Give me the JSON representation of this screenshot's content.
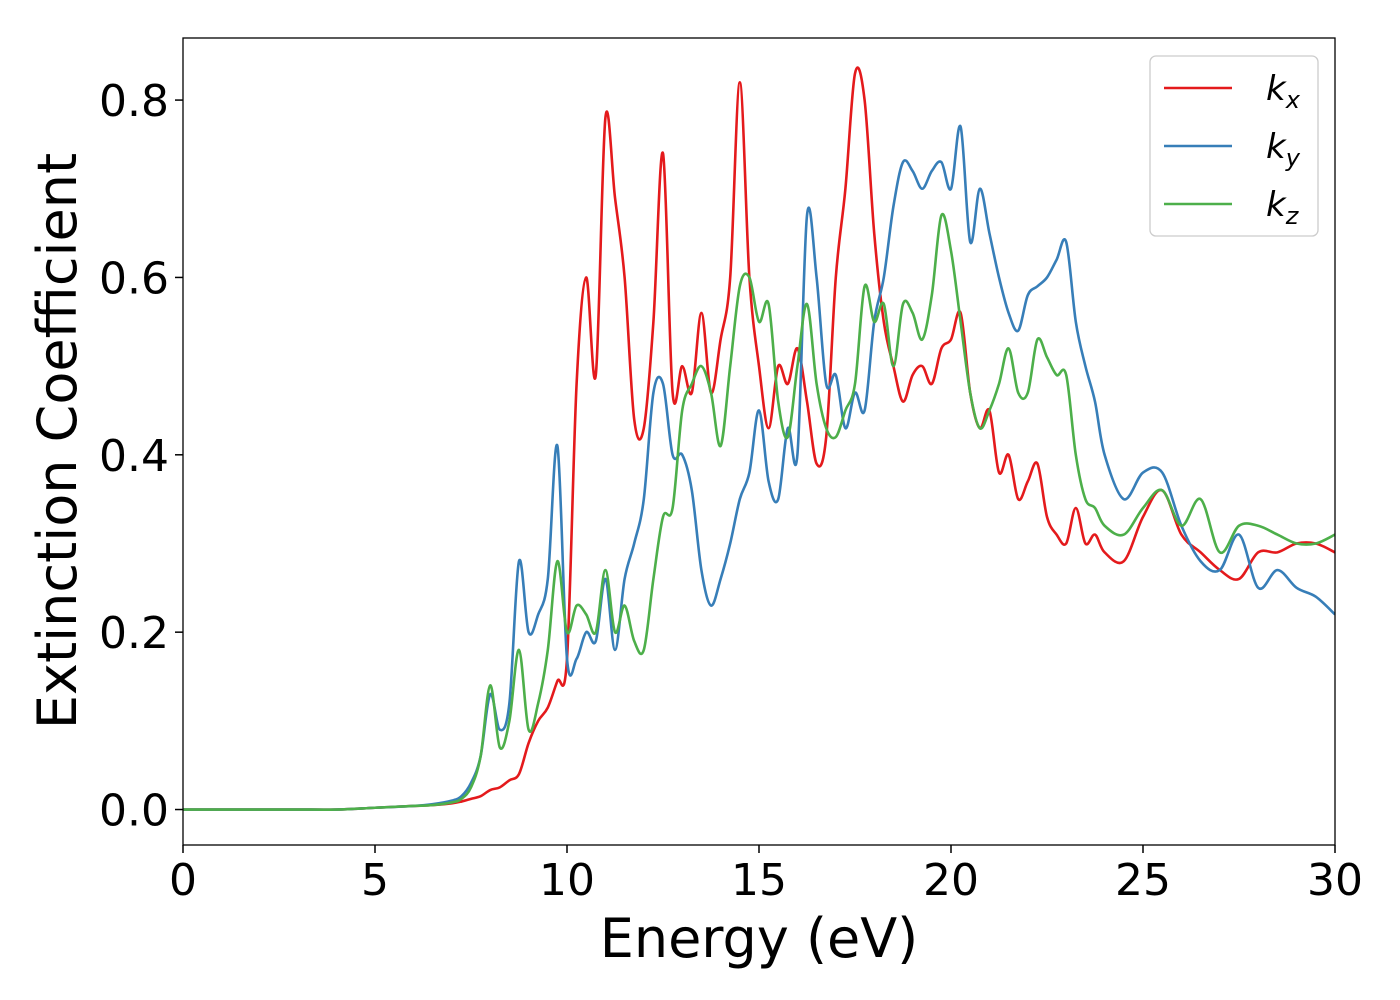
{
  "chart_data": {
    "type": "line",
    "xlabel": "Energy (eV)",
    "ylabel": "Extinction Coefficient",
    "xlim": [
      0,
      30
    ],
    "ylim": [
      -0.04,
      0.87
    ],
    "xticks": [
      0,
      5,
      10,
      15,
      20,
      25,
      30
    ],
    "yticks": [
      {
        "value": 0,
        "label": "0.0"
      },
      0.2,
      0.4,
      0.6,
      0.8
    ],
    "legend": "upper right",
    "grid": false,
    "x": [
      0,
      1,
      2,
      3,
      4,
      5,
      6,
      6.5,
      7,
      7.25,
      7.5,
      7.75,
      8,
      8.25,
      8.5,
      8.75,
      9,
      9.25,
      9.5,
      9.75,
      10,
      10.25,
      10.5,
      10.75,
      11,
      11.25,
      11.5,
      11.75,
      12,
      12.25,
      12.5,
      12.75,
      13,
      13.25,
      13.5,
      13.75,
      14,
      14.25,
      14.5,
      14.75,
      15,
      15.25,
      15.5,
      15.75,
      16,
      16.25,
      16.5,
      16.75,
      17,
      17.25,
      17.5,
      17.75,
      18,
      18.25,
      18.5,
      18.75,
      19,
      19.25,
      19.5,
      19.75,
      20,
      20.25,
      20.5,
      20.75,
      21,
      21.25,
      21.5,
      21.75,
      22,
      22.25,
      22.5,
      22.75,
      23,
      23.25,
      23.5,
      23.75,
      24,
      24.5,
      25,
      25.5,
      26,
      26.5,
      27,
      27.5,
      28,
      28.5,
      29,
      29.5,
      30
    ],
    "series": [
      {
        "name": "kx",
        "color": "#e41a1c",
        "values": [
          0,
          0,
          0,
          0,
          0,
          0.002,
          0.004,
          0.005,
          0.007,
          0.009,
          0.012,
          0.015,
          0.022,
          0.025,
          0.033,
          0.04,
          0.075,
          0.1,
          0.115,
          0.145,
          0.17,
          0.48,
          0.6,
          0.49,
          0.78,
          0.69,
          0.6,
          0.44,
          0.43,
          0.55,
          0.74,
          0.47,
          0.5,
          0.47,
          0.56,
          0.47,
          0.53,
          0.6,
          0.82,
          0.6,
          0.5,
          0.43,
          0.5,
          0.48,
          0.52,
          0.46,
          0.39,
          0.42,
          0.6,
          0.7,
          0.83,
          0.8,
          0.65,
          0.55,
          0.5,
          0.46,
          0.49,
          0.5,
          0.48,
          0.52,
          0.53,
          0.56,
          0.47,
          0.43,
          0.45,
          0.38,
          0.4,
          0.35,
          0.37,
          0.39,
          0.33,
          0.31,
          0.3,
          0.34,
          0.3,
          0.31,
          0.29,
          0.28,
          0.33,
          0.36,
          0.31,
          0.29,
          0.27,
          0.26,
          0.29,
          0.29,
          0.3,
          0.3,
          0.29
        ]
      },
      {
        "name": "ky",
        "color": "#377eb8",
        "values": [
          0,
          0,
          0,
          0,
          0,
          0.002,
          0.004,
          0.006,
          0.01,
          0.015,
          0.03,
          0.06,
          0.13,
          0.09,
          0.12,
          0.28,
          0.2,
          0.22,
          0.26,
          0.41,
          0.17,
          0.17,
          0.2,
          0.19,
          0.26,
          0.18,
          0.26,
          0.3,
          0.35,
          0.47,
          0.48,
          0.4,
          0.4,
          0.36,
          0.27,
          0.23,
          0.26,
          0.3,
          0.35,
          0.38,
          0.45,
          0.37,
          0.35,
          0.43,
          0.4,
          0.67,
          0.6,
          0.48,
          0.49,
          0.43,
          0.47,
          0.45,
          0.55,
          0.6,
          0.68,
          0.73,
          0.72,
          0.7,
          0.72,
          0.73,
          0.7,
          0.77,
          0.64,
          0.7,
          0.65,
          0.6,
          0.56,
          0.54,
          0.58,
          0.59,
          0.6,
          0.62,
          0.64,
          0.55,
          0.5,
          0.46,
          0.4,
          0.35,
          0.38,
          0.38,
          0.32,
          0.28,
          0.27,
          0.31,
          0.25,
          0.27,
          0.25,
          0.24,
          0.22
        ]
      },
      {
        "name": "kz",
        "color": "#4daf4a",
        "values": [
          0,
          0,
          0,
          0,
          0,
          0.002,
          0.004,
          0.005,
          0.008,
          0.012,
          0.025,
          0.06,
          0.14,
          0.07,
          0.1,
          0.18,
          0.09,
          0.12,
          0.18,
          0.28,
          0.2,
          0.23,
          0.22,
          0.2,
          0.27,
          0.2,
          0.23,
          0.19,
          0.18,
          0.26,
          0.33,
          0.34,
          0.45,
          0.48,
          0.5,
          0.47,
          0.41,
          0.5,
          0.59,
          0.6,
          0.55,
          0.57,
          0.46,
          0.42,
          0.5,
          0.57,
          0.48,
          0.43,
          0.42,
          0.45,
          0.48,
          0.59,
          0.55,
          0.57,
          0.5,
          0.57,
          0.56,
          0.53,
          0.58,
          0.67,
          0.63,
          0.55,
          0.47,
          0.43,
          0.45,
          0.48,
          0.52,
          0.47,
          0.47,
          0.53,
          0.51,
          0.49,
          0.49,
          0.4,
          0.35,
          0.34,
          0.32,
          0.31,
          0.34,
          0.36,
          0.32,
          0.35,
          0.29,
          0.32,
          0.32,
          0.31,
          0.3,
          0.3,
          0.31
        ]
      }
    ]
  }
}
